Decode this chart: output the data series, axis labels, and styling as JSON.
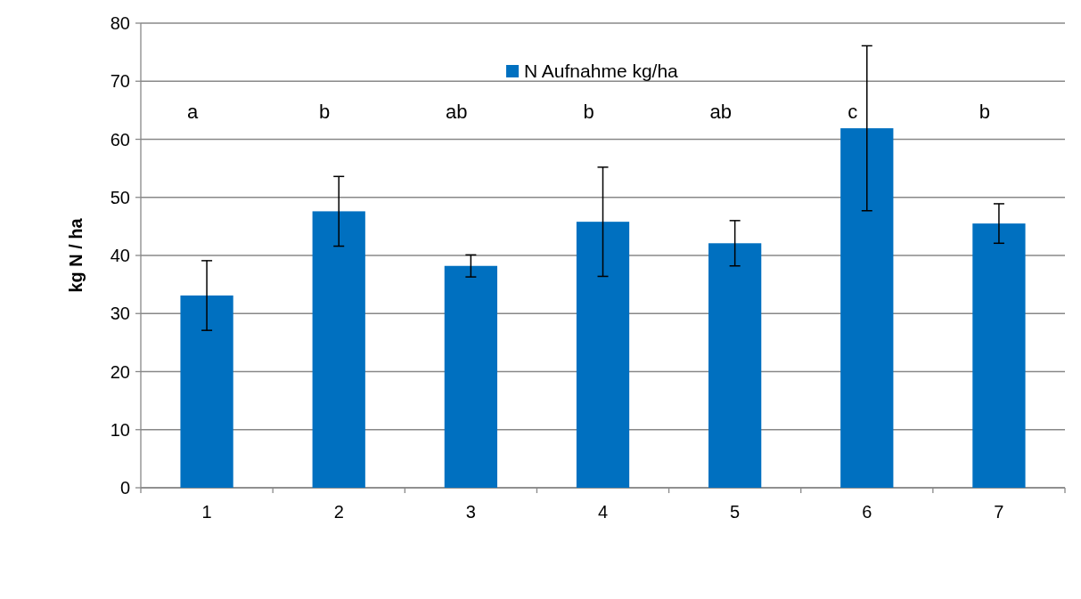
{
  "chart_data": {
    "type": "bar",
    "ylabel": "kg N / ha",
    "categories": [
      "1",
      "2",
      "3",
      "4",
      "5",
      "6",
      "7"
    ],
    "series": [
      {
        "name": "N Aufnahme kg/ha",
        "color": "#0070c0",
        "values": [
          33.1,
          47.6,
          38.2,
          45.8,
          42.1,
          61.9,
          45.5
        ],
        "errors": [
          6,
          6,
          1.9,
          9.4,
          3.9,
          14.2,
          3.4
        ]
      }
    ],
    "ylim": [
      0,
      80
    ],
    "yticks": [
      0,
      10,
      20,
      30,
      40,
      50,
      60,
      70,
      80
    ],
    "grid": "y",
    "legend": "top right",
    "annotations": [
      "a",
      "b",
      "ab",
      "b",
      "ab",
      "c",
      "b"
    ]
  }
}
